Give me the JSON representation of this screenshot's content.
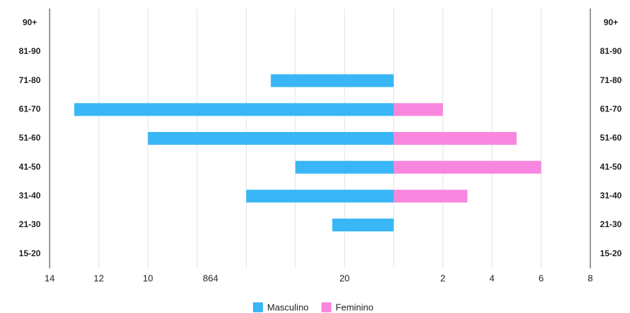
{
  "chart_data": {
    "type": "pyramid",
    "categories": [
      "90+",
      "81-90",
      "71-80",
      "61-70",
      "51-60",
      "41-50",
      "31-40",
      "21-30",
      "15-20"
    ],
    "series": [
      {
        "name": "Masculino",
        "color": "#38b6f5",
        "values": [
          0,
          0,
          -5,
          -13,
          -10,
          -4,
          -6,
          -2.5,
          0
        ]
      },
      {
        "name": "Feminino",
        "color": "#f986de",
        "values": [
          0,
          0,
          0,
          2,
          5,
          6,
          3,
          0,
          0
        ]
      }
    ],
    "xlim": [
      -14,
      8
    ],
    "xticks": [
      {
        "value": -14,
        "label": "14"
      },
      {
        "value": -12,
        "label": "12"
      },
      {
        "value": -10,
        "label": "10"
      },
      {
        "value": -8,
        "label": "864"
      },
      {
        "value": -6,
        "label": null
      },
      {
        "value": -4,
        "label": null
      },
      {
        "value": -2,
        "label": "20"
      },
      {
        "value": 0,
        "label": null
      },
      2,
      4,
      6,
      8
    ],
    "grid": true,
    "legend": "bottom"
  }
}
